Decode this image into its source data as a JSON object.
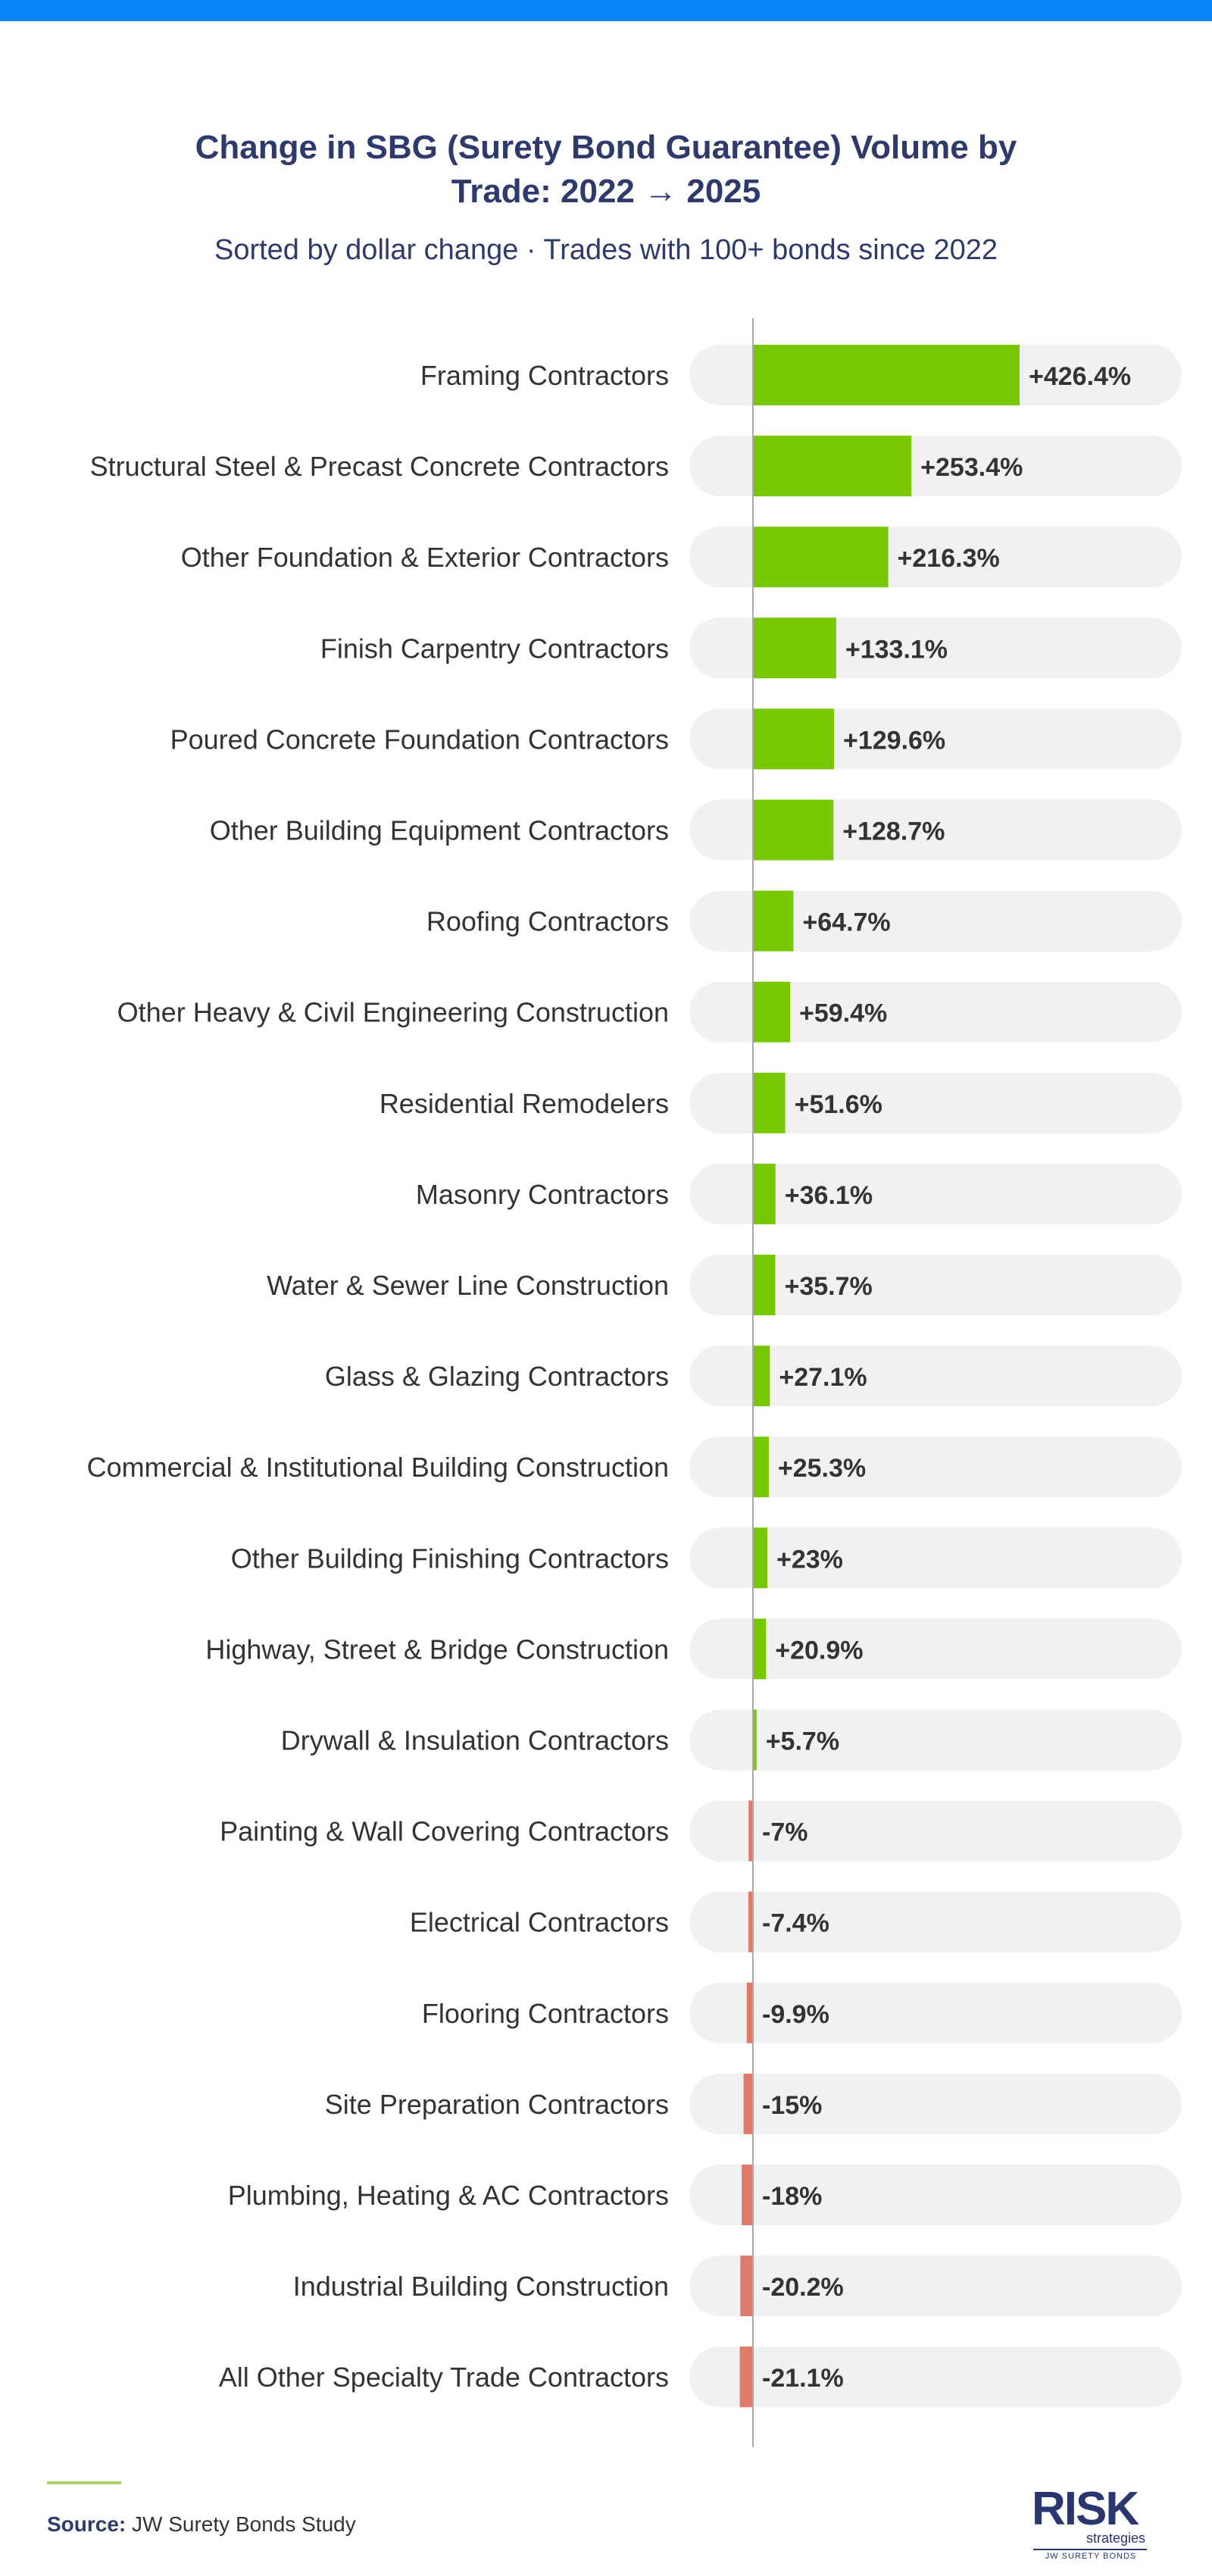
{
  "colors": {
    "top_bar": "#0a84f7",
    "title": "#2e3a6b",
    "positive": "#77c800",
    "negative": "#e07a6a",
    "track": "#f1f1f1",
    "label": "#333333",
    "value": "#333333",
    "axis": "#aaaaaa",
    "source_rule": "#a9d36a"
  },
  "header": {
    "title_line1": "Change in SBG (Surety Bond Guarantee) Volume by",
    "title_line2": "Trade: 2022 → 2025",
    "subtitle": "Sorted by dollar change · Trades with 100+ bonds since 2022"
  },
  "footer": {
    "source_label": "Source:",
    "source_text": "JW Surety Bonds Study",
    "logo_text": "RISK",
    "logo_sub": "strategies",
    "logo_tagline": "JW SURETY BONDS"
  },
  "chart_data": {
    "type": "bar",
    "orientation": "horizontal",
    "title": "Change in SBG (Surety Bond Guarantee) Volume by Trade: 2022 → 2025",
    "subtitle": "Sorted by dollar change · Trades with 100+ bonds since 2022",
    "xlabel": "",
    "ylabel": "",
    "grid": false,
    "xlim": [
      -50,
      610
    ],
    "categories": [
      "Framing Contractors",
      "Structural Steel & Precast Concrete Contractors",
      "Other Foundation & Exterior Contractors",
      "Finish Carpentry Contractors",
      "Poured Concrete Foundation Contractors",
      "Other Building Equipment Contractors",
      "Roofing Contractors",
      "Other Heavy & Civil Engineering Construction",
      "Residential Remodelers",
      "Masonry Contractors",
      "Water & Sewer Line Construction",
      "Glass & Glazing Contractors",
      "Commercial & Institutional Building Construction",
      "Other Building Finishing Contractors",
      "Highway, Street & Bridge Construction",
      "Drywall & Insulation Contractors",
      "Painting & Wall Covering Contractors",
      "Electrical Contractors",
      "Flooring Contractors",
      "Site Preparation Contractors",
      "Plumbing, Heating & AC Contractors",
      "Industrial Building Construction",
      "All Other Specialty Trade Contractors"
    ],
    "values": [
      426.4,
      253.4,
      216.3,
      133.1,
      129.6,
      128.7,
      64.7,
      59.4,
      51.6,
      36.1,
      35.7,
      27.1,
      25.3,
      23,
      20.9,
      5.7,
      -7,
      -7.4,
      -9.9,
      -15,
      -18,
      -20.2,
      -21.1
    ],
    "labels": [
      "+426.4%",
      "+253.4%",
      "+216.3%",
      "+133.1%",
      "+129.6%",
      "+128.7%",
      "+64.7%",
      "+59.4%",
      "+51.6%",
      "+36.1%",
      "+35.7%",
      "+27.1%",
      "+25.3%",
      "+23%",
      "+20.9%",
      "+5.7%",
      "-7%",
      "-7.4%",
      "-9.9%",
      "-15%",
      "-18%",
      "-20.2%",
      "-21.1%"
    ]
  }
}
